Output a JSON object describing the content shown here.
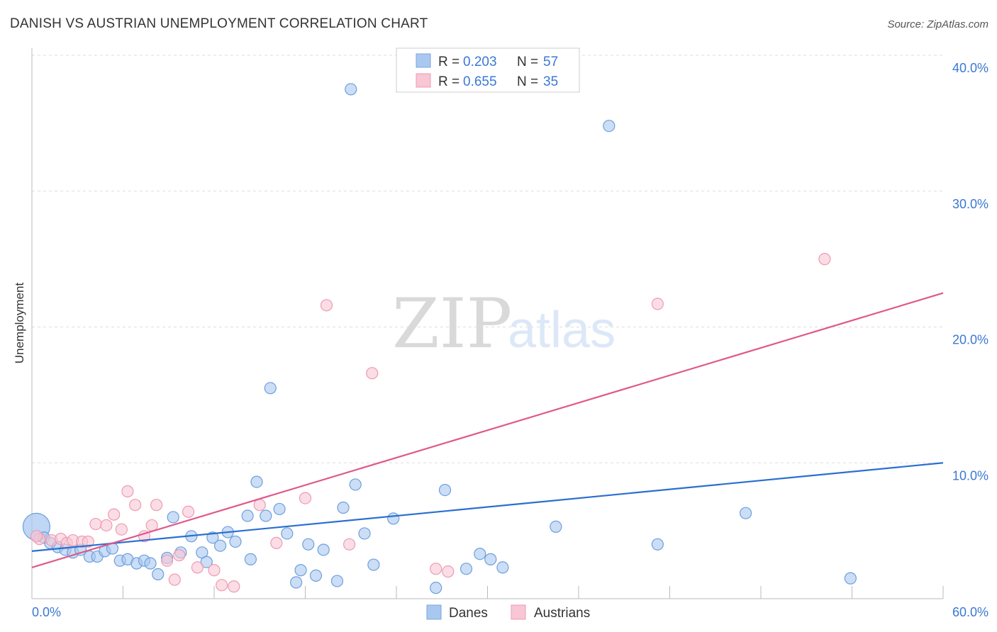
{
  "header": {
    "title": "DANISH VS AUSTRIAN UNEMPLOYMENT CORRELATION CHART",
    "source": "Source: ZipAtlas.com"
  },
  "watermark": {
    "part1": "ZIP",
    "part2": "atlas"
  },
  "legend_top": {
    "rows": [
      {
        "r_label": "R = ",
        "r_value": "0.203",
        "n_label": "N = ",
        "n_value": "57",
        "color": "#a9c8f0",
        "border": "#7aa6de"
      },
      {
        "r_label": "R = ",
        "r_value": "0.655",
        "n_label": "N = ",
        "n_value": "35",
        "color": "#f8c6d4",
        "border": "#ee9ab3"
      }
    ]
  },
  "legend_bottom": {
    "items": [
      "Danes",
      "Austrians"
    ]
  },
  "chart_data": {
    "type": "scatter",
    "title": "DANISH VS AUSTRIAN UNEMPLOYMENT CORRELATION CHART",
    "xlabel": "",
    "ylabel": "Unemployment",
    "xlim": [
      0,
      60
    ],
    "ylim": [
      0,
      40
    ],
    "x_tick_labels": [
      "0.0%",
      "60.0%"
    ],
    "y_ticks": [
      10,
      20,
      30,
      40
    ],
    "y_tick_labels": [
      "10.0%",
      "20.0%",
      "30.0%",
      "40.0%"
    ],
    "grid": "horizontal dashed",
    "legend_position": "top-center",
    "series": [
      {
        "name": "Danes",
        "color": "#a9c8f0",
        "edge": "#6d9fdc",
        "line_color": "#2b6fd0",
        "trend": {
          "x": [
            0,
            60
          ],
          "y": [
            3.5,
            10.0
          ]
        },
        "points": [
          [
            0.3,
            5.3
          ],
          [
            0.8,
            4.5
          ],
          [
            1.2,
            4.1
          ],
          [
            1.7,
            3.8
          ],
          [
            2.2,
            3.6
          ],
          [
            2.7,
            3.4
          ],
          [
            3.2,
            3.6
          ],
          [
            3.8,
            3.1
          ],
          [
            4.3,
            3.1
          ],
          [
            4.8,
            3.5
          ],
          [
            5.3,
            3.7
          ],
          [
            5.8,
            2.8
          ],
          [
            6.3,
            2.9
          ],
          [
            6.9,
            2.6
          ],
          [
            7.4,
            2.8
          ],
          [
            7.8,
            2.6
          ],
          [
            8.3,
            1.8
          ],
          [
            8.9,
            3.0
          ],
          [
            9.3,
            6.0
          ],
          [
            9.8,
            3.4
          ],
          [
            10.5,
            4.6
          ],
          [
            11.2,
            3.4
          ],
          [
            11.5,
            2.7
          ],
          [
            11.9,
            4.5
          ],
          [
            12.4,
            3.9
          ],
          [
            12.9,
            4.9
          ],
          [
            13.4,
            4.2
          ],
          [
            14.2,
            6.1
          ],
          [
            14.4,
            2.9
          ],
          [
            14.8,
            8.6
          ],
          [
            15.4,
            6.1
          ],
          [
            15.7,
            15.5
          ],
          [
            16.3,
            6.6
          ],
          [
            16.8,
            4.8
          ],
          [
            17.4,
            1.2
          ],
          [
            17.7,
            2.1
          ],
          [
            18.2,
            4.0
          ],
          [
            18.7,
            1.7
          ],
          [
            19.2,
            3.6
          ],
          [
            20.1,
            1.3
          ],
          [
            20.5,
            6.7
          ],
          [
            21.0,
            37.5
          ],
          [
            21.3,
            8.4
          ],
          [
            21.9,
            4.8
          ],
          [
            22.5,
            2.5
          ],
          [
            23.8,
            5.9
          ],
          [
            26.6,
            0.8
          ],
          [
            27.2,
            8.0
          ],
          [
            28.6,
            2.2
          ],
          [
            29.5,
            3.3
          ],
          [
            30.2,
            2.9
          ],
          [
            31.0,
            2.3
          ],
          [
            34.5,
            5.3
          ],
          [
            38.0,
            34.8
          ],
          [
            41.2,
            4.0
          ],
          [
            47.0,
            6.3
          ],
          [
            53.9,
            1.5
          ]
        ]
      },
      {
        "name": "Austrians",
        "color": "#f8c6d4",
        "edge": "#ee9ab3",
        "line_color": "#e0588a",
        "trend": {
          "x": [
            0,
            60
          ],
          "y": [
            2.3,
            22.5
          ]
        },
        "points": [
          [
            0.5,
            4.4
          ],
          [
            1.3,
            4.3
          ],
          [
            1.9,
            4.4
          ],
          [
            2.3,
            4.1
          ],
          [
            2.7,
            4.3
          ],
          [
            3.3,
            4.2
          ],
          [
            3.7,
            4.2
          ],
          [
            4.2,
            5.5
          ],
          [
            4.9,
            5.4
          ],
          [
            5.4,
            6.2
          ],
          [
            5.9,
            5.1
          ],
          [
            6.3,
            7.9
          ],
          [
            6.8,
            6.9
          ],
          [
            7.4,
            4.6
          ],
          [
            7.9,
            5.4
          ],
          [
            8.2,
            6.9
          ],
          [
            8.9,
            2.8
          ],
          [
            9.4,
            1.4
          ],
          [
            9.7,
            3.2
          ],
          [
            10.3,
            6.4
          ],
          [
            10.9,
            2.3
          ],
          [
            12.0,
            2.1
          ],
          [
            12.5,
            1.0
          ],
          [
            13.3,
            0.9
          ],
          [
            15.0,
            6.9
          ],
          [
            16.1,
            4.1
          ],
          [
            18.0,
            7.4
          ],
          [
            19.4,
            21.6
          ],
          [
            20.9,
            4.0
          ],
          [
            22.4,
            16.6
          ],
          [
            26.6,
            2.2
          ],
          [
            27.4,
            2.0
          ],
          [
            41.2,
            21.7
          ],
          [
            52.2,
            25.0
          ],
          [
            0.3,
            4.6
          ]
        ]
      }
    ]
  }
}
